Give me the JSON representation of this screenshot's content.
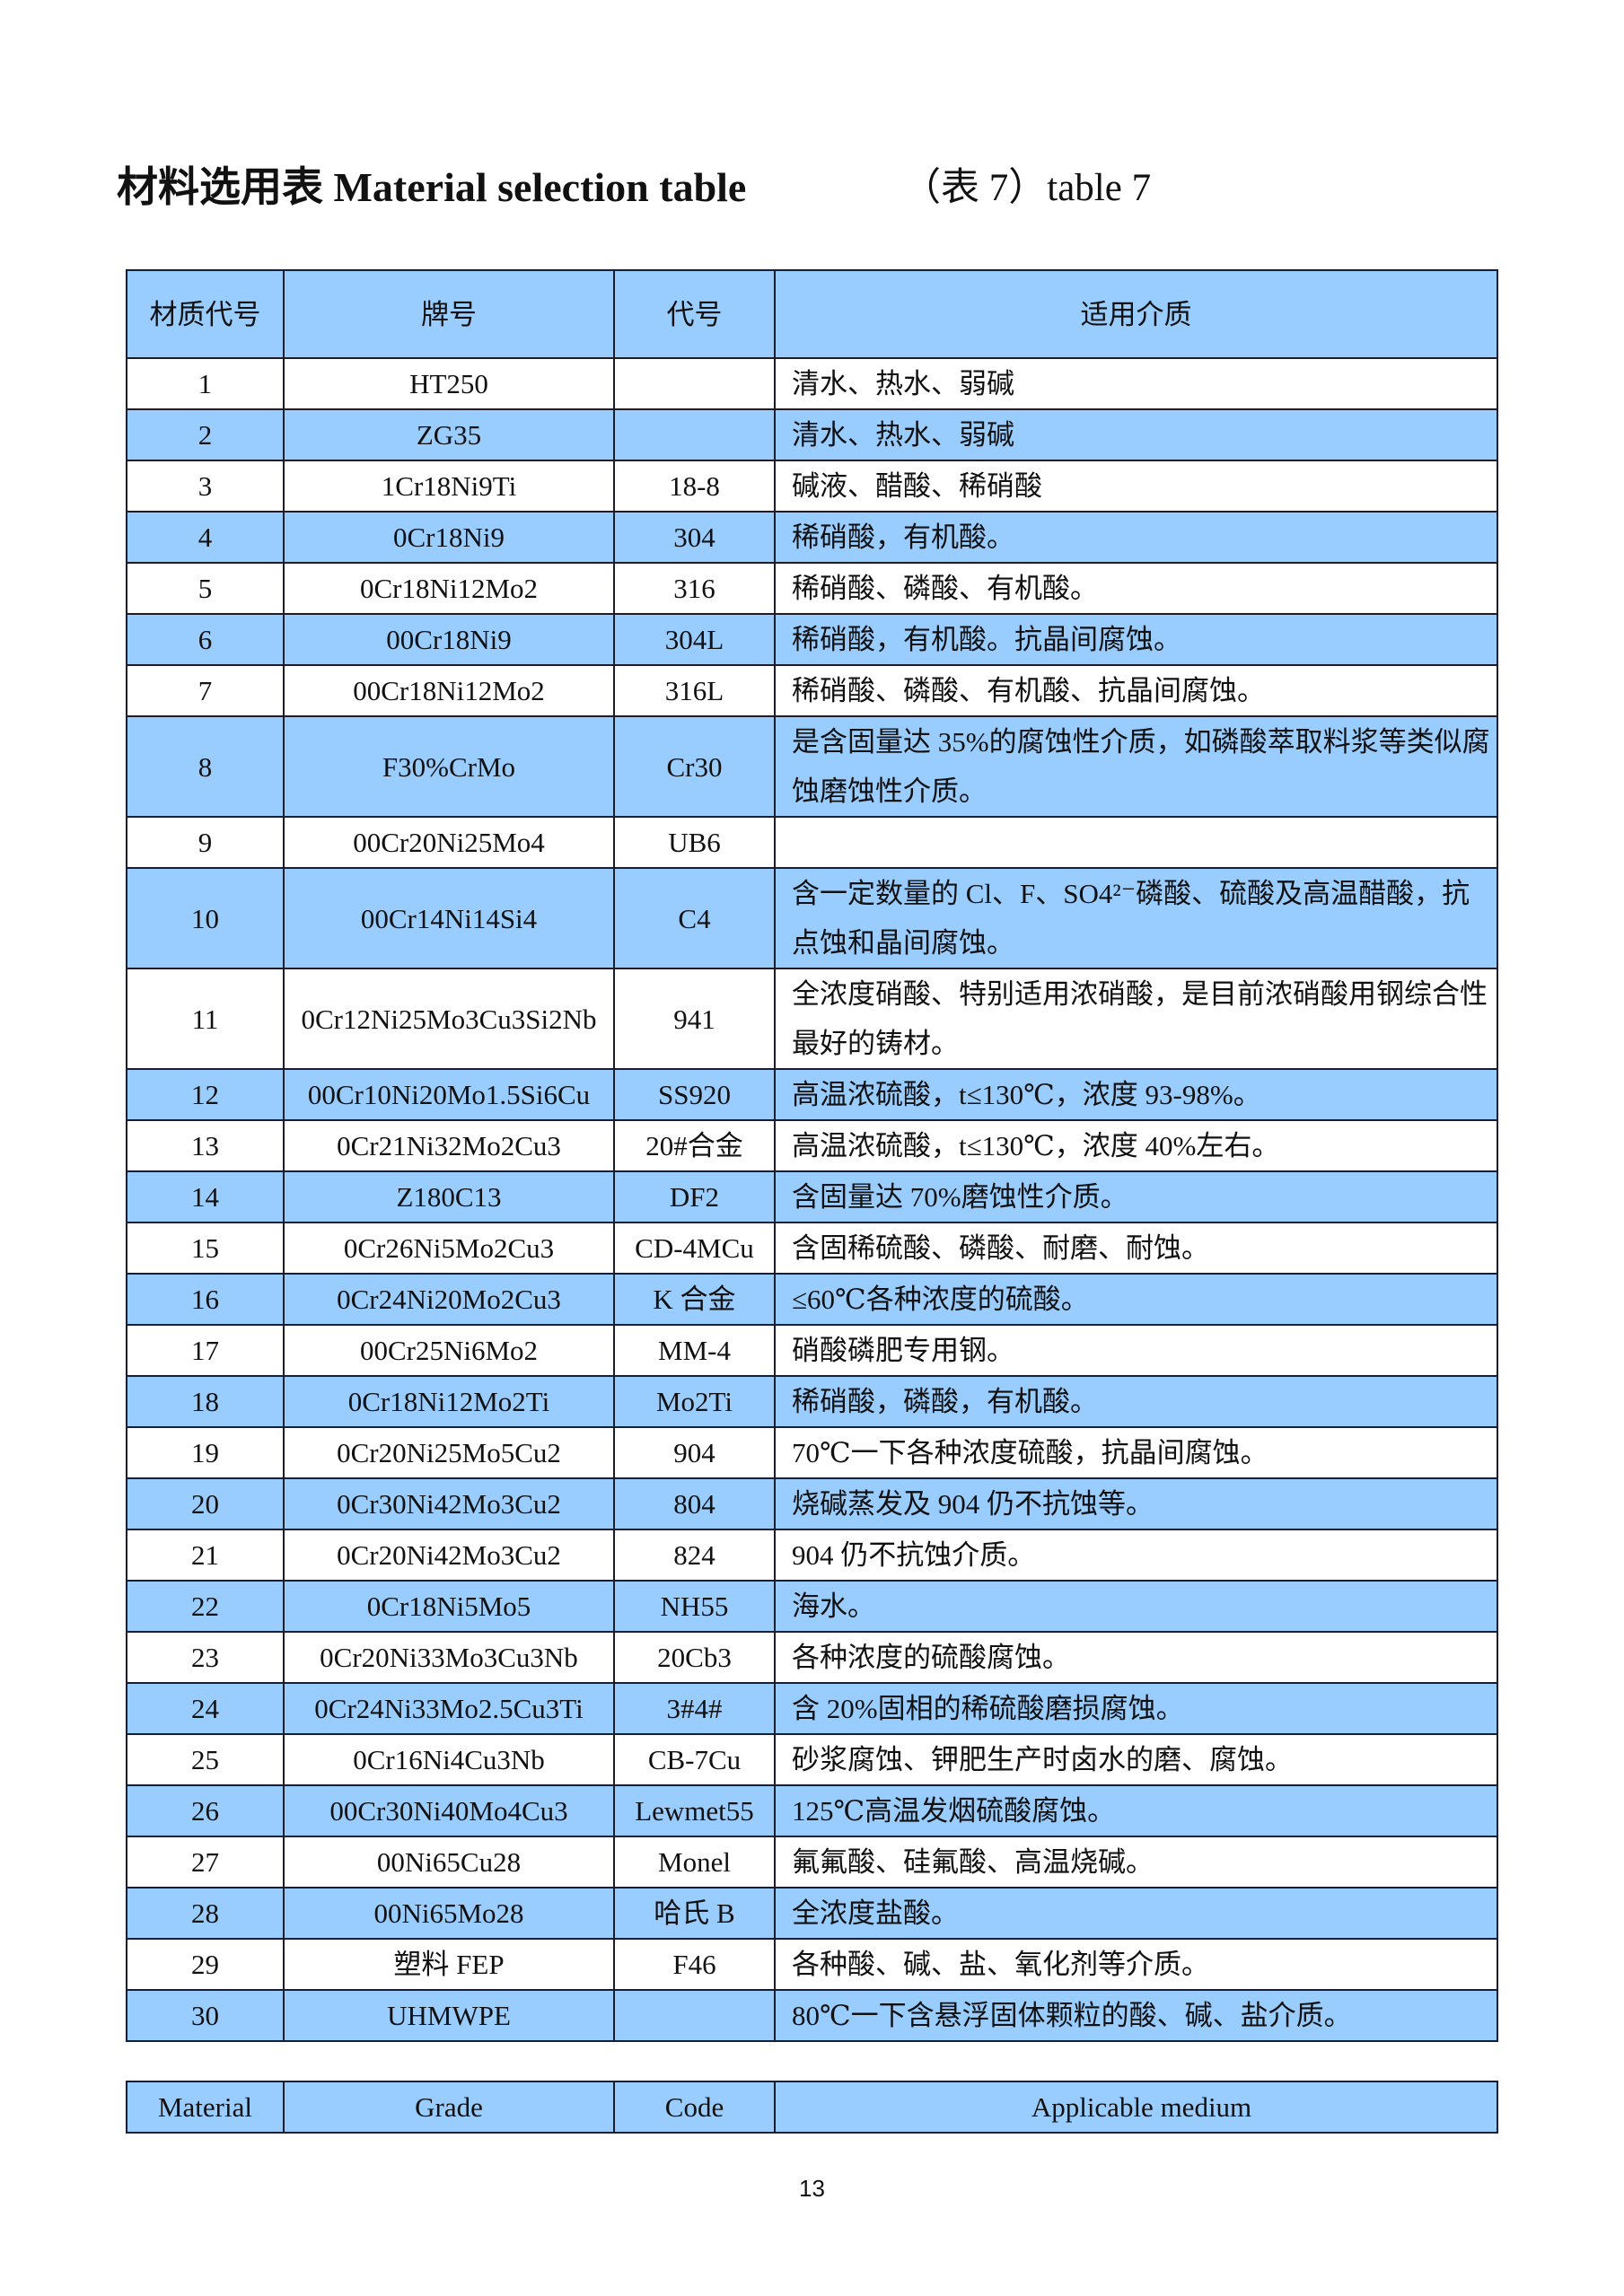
{
  "page": {
    "title": "材料选用表 Material selection table",
    "subtitle": "（表 7）table 7",
    "page_number": "13"
  },
  "colors": {
    "header_blue": "#99ccff",
    "border": "#1c1c2a"
  },
  "table": {
    "headers": [
      "材质代号",
      "牌号",
      "代号",
      "适用介质"
    ],
    "rows": [
      [
        "1",
        "HT250",
        "",
        "清水、热水、弱碱"
      ],
      [
        "2",
        "ZG35",
        "",
        "清水、热水、弱碱"
      ],
      [
        "3",
        "1Cr18Ni9Ti",
        "18-8",
        "碱液、醋酸、稀硝酸"
      ],
      [
        "4",
        "0Cr18Ni9",
        "304",
        "稀硝酸，有机酸。"
      ],
      [
        "5",
        "0Cr18Ni12Mo2",
        "316",
        "稀硝酸、磷酸、有机酸。"
      ],
      [
        "6",
        "00Cr18Ni9",
        "304L",
        "稀硝酸，有机酸。抗晶间腐蚀。"
      ],
      [
        "7",
        "00Cr18Ni12Mo2",
        "316L",
        "稀硝酸、磷酸、有机酸、抗晶间腐蚀。"
      ],
      [
        "8",
        "F30%CrMo",
        "Cr30",
        "是含固量达 35%的腐蚀性介质，如磷酸萃取料浆等类似腐蚀磨蚀性介质。"
      ],
      [
        "9",
        "00Cr20Ni25Mo4",
        "UB6",
        ""
      ],
      [
        "10",
        "00Cr14Ni14Si4",
        "C4",
        "含一定数量的 Cl、F、SO4²⁻磷酸、硫酸及高温醋酸，抗点蚀和晶间腐蚀。"
      ],
      [
        "11",
        "0Cr12Ni25Mo3Cu3Si2Nb",
        "941",
        "全浓度硝酸、特别适用浓硝酸，是目前浓硝酸用钢综合性最好的铸材。"
      ],
      [
        "12",
        "00Cr10Ni20Mo1.5Si6Cu",
        "SS920",
        "高温浓硫酸，t≤130℃，浓度 93-98%。"
      ],
      [
        "13",
        "0Cr21Ni32Mo2Cu3",
        "20#合金",
        "高温浓硫酸，t≤130℃，浓度 40%左右。"
      ],
      [
        "14",
        "Z180C13",
        "DF2",
        "含固量达 70%磨蚀性介质。"
      ],
      [
        "15",
        "0Cr26Ni5Mo2Cu3",
        "CD-4MCu",
        "含固稀硫酸、磷酸、耐磨、耐蚀。"
      ],
      [
        "16",
        "0Cr24Ni20Mo2Cu3",
        "K 合金",
        "≤60℃各种浓度的硫酸。"
      ],
      [
        "17",
        "00Cr25Ni6Mo2",
        "MM-4",
        "硝酸磷肥专用钢。"
      ],
      [
        "18",
        "0Cr18Ni12Mo2Ti",
        "Mo2Ti",
        "稀硝酸，磷酸，有机酸。"
      ],
      [
        "19",
        "0Cr20Ni25Mo5Cu2",
        "904",
        "70℃一下各种浓度硫酸，抗晶间腐蚀。"
      ],
      [
        "20",
        "0Cr30Ni42Mo3Cu2",
        "804",
        "烧碱蒸发及 904 仍不抗蚀等。"
      ],
      [
        "21",
        "0Cr20Ni42Mo3Cu2",
        "824",
        "904 仍不抗蚀介质。"
      ],
      [
        "22",
        "0Cr18Ni5Mo5",
        "NH55",
        "海水。"
      ],
      [
        "23",
        "0Cr20Ni33Mo3Cu3Nb",
        "20Cb3",
        "各种浓度的硫酸腐蚀。"
      ],
      [
        "24",
        "0Cr24Ni33Mo2.5Cu3Ti",
        "3#4#",
        "含 20%固相的稀硫酸磨损腐蚀。"
      ],
      [
        "25",
        "0Cr16Ni4Cu3Nb",
        "CB-7Cu",
        "砂浆腐蚀、钾肥生产时卤水的磨、腐蚀。"
      ],
      [
        "26",
        "00Cr30Ni40Mo4Cu3",
        "Lewmet55",
        "125℃高温发烟硫酸腐蚀。"
      ],
      [
        "27",
        "00Ni65Cu28",
        "Monel",
        "氟氟酸、硅氟酸、高温烧碱。"
      ],
      [
        "28",
        "00Ni65Mo28",
        "哈氏 B",
        "全浓度盐酸。"
      ],
      [
        "29",
        "塑料 FEP",
        "F46",
        "各种酸、碱、盐、氧化剂等介质。"
      ],
      [
        "30",
        "UHMWPE",
        "",
        "80℃一下含悬浮固体颗粒的酸、碱、盐介质。"
      ]
    ]
  },
  "footer_table": {
    "headers": [
      "Material",
      "Grade",
      "Code",
      "Applicable medium"
    ]
  }
}
